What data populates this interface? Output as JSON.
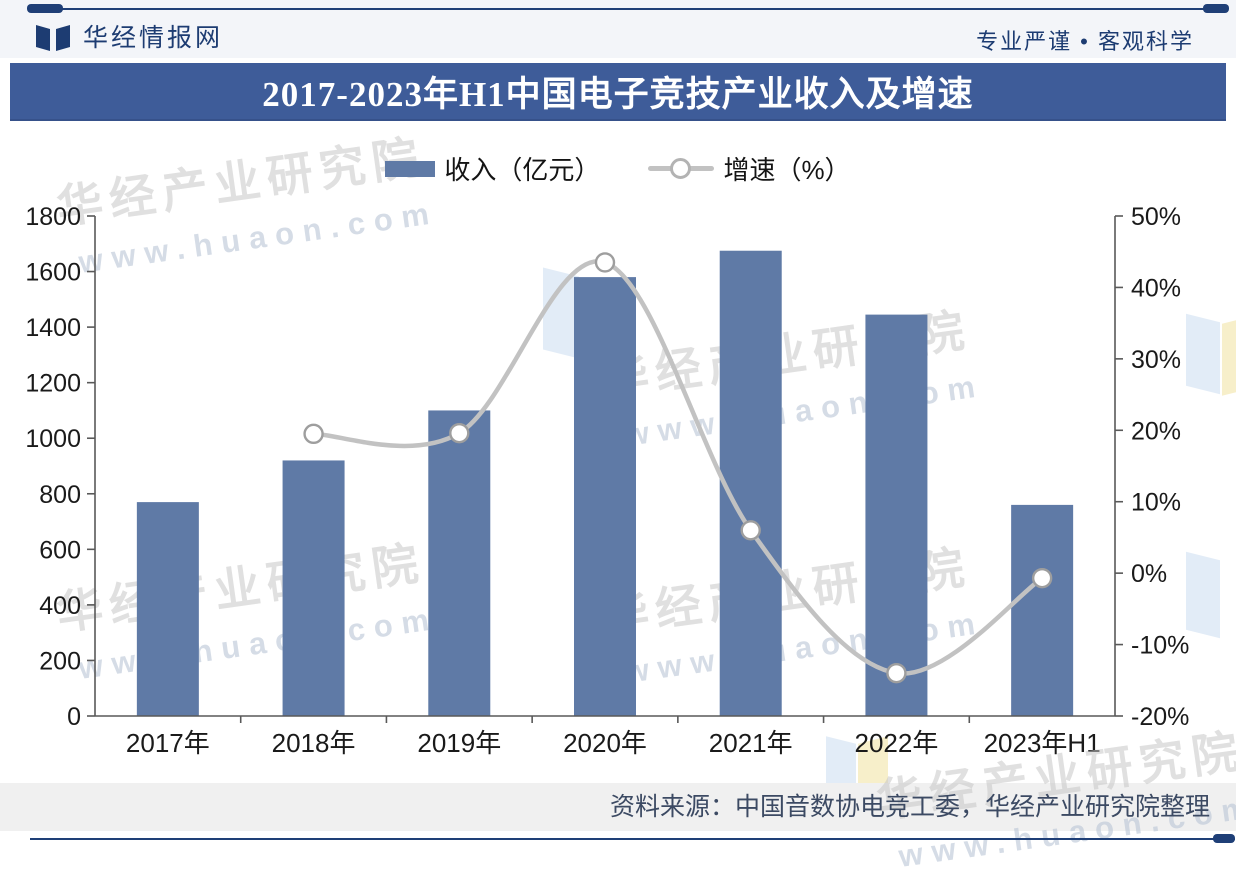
{
  "header": {
    "brand": "华经情报网",
    "slogan": "专业严谨 • 客观科学"
  },
  "title": "2017-2023年H1中国电子竞技产业收入及增速",
  "watermark": {
    "name": "华经产业研究院",
    "url": "www.huaon.com"
  },
  "footer": {
    "source": "资料来源：中国音数协电竞工委，华经产业研究院整理"
  },
  "colors": {
    "bar": "#5f7aa6",
    "line": "#c2c2c2",
    "marker_fill": "#ffffff",
    "marker_stroke": "#9e9e9e",
    "title_bar_bg": "#3e5c99",
    "brand_navy": "#1d3c72",
    "rule": "#1f3f77",
    "axis": "#595959",
    "tick_text": "#1a1a1a"
  },
  "chart_data": {
    "type": "combo",
    "categories": [
      "2017年",
      "2018年",
      "2019年",
      "2020年",
      "2021年",
      "2022年",
      "2023年H1"
    ],
    "series": [
      {
        "name": "收入（亿元）",
        "type": "bar",
        "axis": "left",
        "color": "#5f7aa6",
        "values": [
          770,
          920,
          1100,
          1580,
          1675,
          1445,
          760
        ]
      },
      {
        "name": "增速（%）",
        "type": "line",
        "axis": "right",
        "color": "#c2c2c2",
        "values": [
          null,
          19.5,
          19.6,
          43.5,
          6.0,
          -14.0,
          -0.7
        ]
      }
    ],
    "left_axis": {
      "min": 0,
      "max": 1800,
      "step": 200,
      "suffix": ""
    },
    "right_axis": {
      "min": -20,
      "max": 50,
      "step": 10,
      "suffix": "%"
    },
    "grid": false,
    "legend_position": "top"
  }
}
